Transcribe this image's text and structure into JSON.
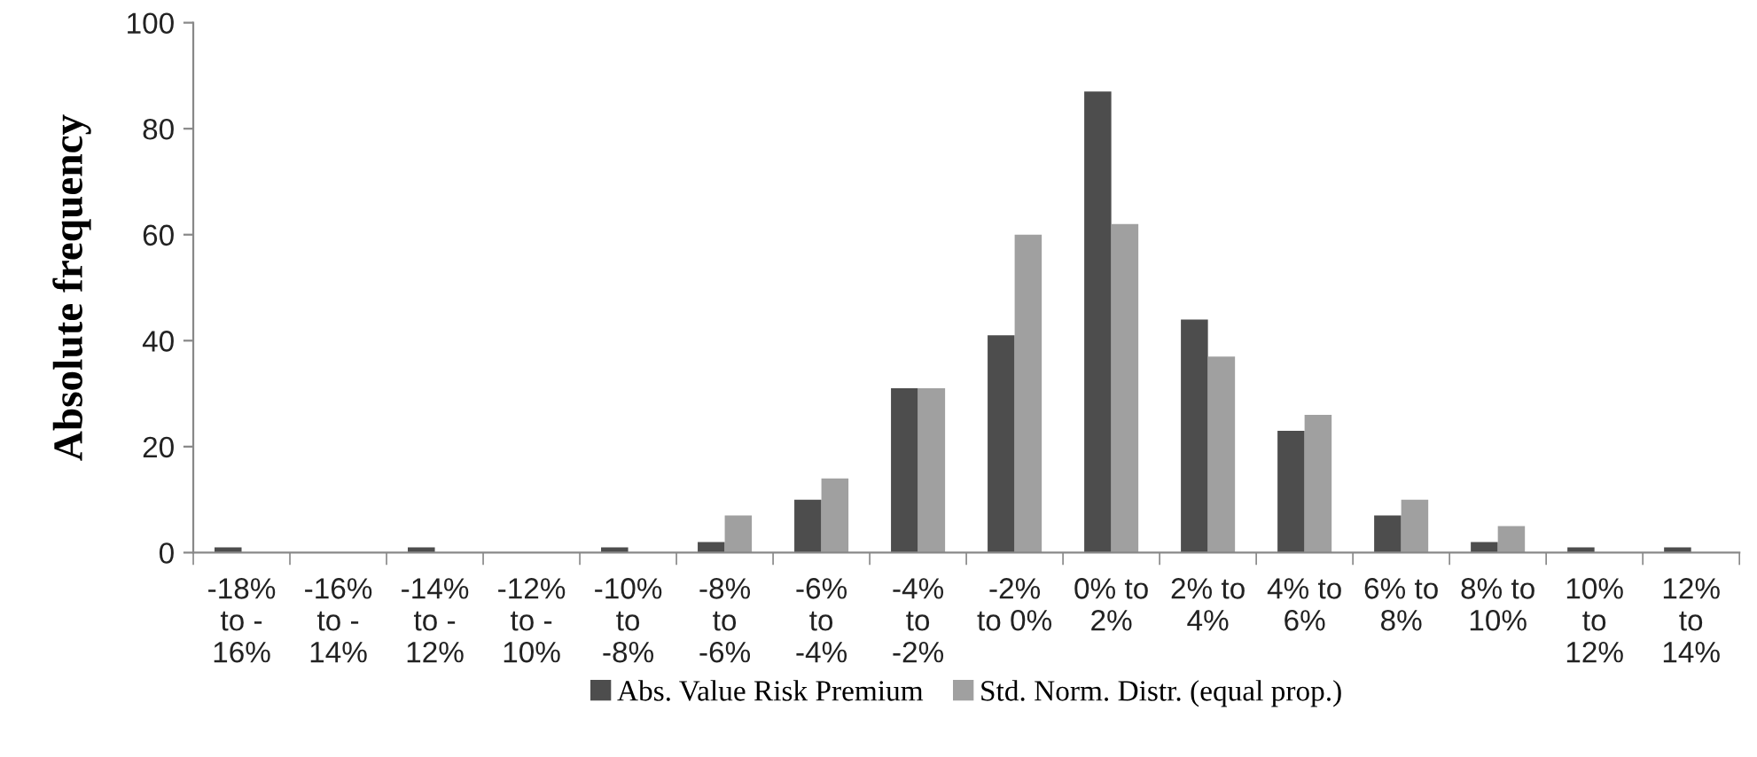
{
  "chart_data": {
    "type": "bar",
    "ylabel": "Absolute frequency",
    "categories": [
      "-18%\nto -\n16%",
      "-16%\nto -\n14%",
      "-14%\nto -\n12%",
      "-12%\nto -\n10%",
      "-10%\nto\n-8%",
      "-8%\nto\n-6%",
      "-6%\nto\n-4%",
      "-4%\nto\n-2%",
      "-2%\nto 0%",
      "0% to\n2%",
      "2% to\n4%",
      "4% to\n6%",
      "6% to\n8%",
      "8% to\n10%",
      "10%\nto\n12%",
      "12%\nto\n14%"
    ],
    "series": [
      {
        "name": "Abs. Value Risk Premium",
        "color": "#4d4d4d",
        "values": [
          1,
          0,
          1,
          0,
          1,
          2,
          10,
          31,
          41,
          87,
          44,
          23,
          7,
          2,
          1,
          1
        ]
      },
      {
        "name": "Std. Norm. Distr. (equal prop.)",
        "color": "#a0a0a0",
        "values": [
          0,
          0,
          0,
          0,
          0,
          7,
          14,
          31,
          60,
          62,
          37,
          26,
          10,
          5,
          0,
          0
        ]
      }
    ],
    "ylim": [
      0,
      100
    ],
    "yticks": [
      0,
      20,
      40,
      60,
      80,
      100
    ],
    "grid": false,
    "legend": "bottom"
  }
}
